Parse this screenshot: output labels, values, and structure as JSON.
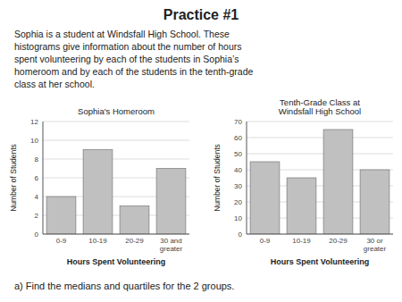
{
  "title": "Practice #1",
  "subtitle": "Sophia is a student at Windsfall High School. These\nhistograms give information about the number of hours\nspent volunteering by each of the students in Sophia’s\nhomeroom and by each of the students in the tenth-grade\nclass at her school.",
  "annotations": [
    "a) Find the medians and quartiles for the 2 groups."
  ],
  "chart_data": [
    {
      "type": "bar",
      "title": "Sophia's Homeroom",
      "xlabel": "Hours Spent Volunteering",
      "ylabel": "Number of Students",
      "categories": [
        "0-9",
        "10-19",
        "20-29",
        "30 and\ngreater"
      ],
      "values": [
        4,
        9,
        3,
        7
      ],
      "color": "#C0C0C0",
      "ylim": [
        0,
        12
      ],
      "yticks": [
        0,
        2,
        4,
        6,
        8,
        10,
        12
      ],
      "grid": true
    },
    {
      "type": "bar",
      "title": "Tenth-Grade Class at\nWindsfall High School",
      "xlabel": "Hours Spent Volunteering",
      "ylabel": "Number of Students",
      "categories": [
        "0-9",
        "10-19",
        "20-29",
        "30 or\ngreater"
      ],
      "values": [
        45,
        35,
        65,
        40
      ],
      "color": "#C0C0C0",
      "ylim": [
        0,
        70
      ],
      "yticks": [
        0,
        10,
        20,
        30,
        40,
        50,
        60,
        70
      ],
      "grid": true
    }
  ]
}
